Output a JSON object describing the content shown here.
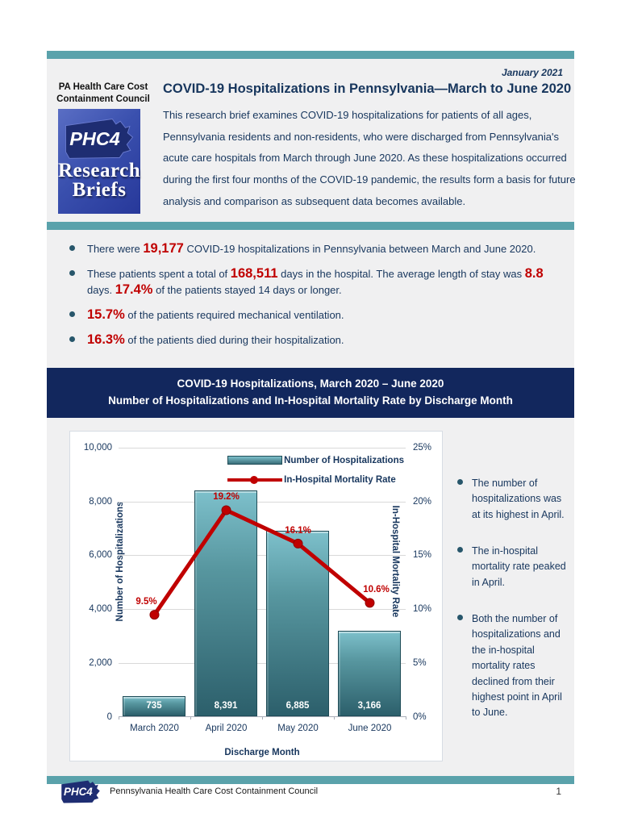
{
  "colors": {
    "teal_accent": "#5aa2ab",
    "navy_text": "#17365d",
    "navy_bar": "#12275d",
    "red_emphasis": "#c00000",
    "bar_top": "#7dc0cb",
    "bar_bottom": "#2c5f6b",
    "content_bg": "#f0f0f1"
  },
  "header": {
    "date": "January 2021",
    "org_name_line1": "PA Health Care Cost",
    "org_name_line2": "Containment Council",
    "logo_acronym": "PHC4",
    "logo_series_line1": "Research",
    "logo_series_line2": "Briefs",
    "title": "COVID-19 Hospitalizations in Pennsylvania—March to June 2020",
    "intro": "This research brief examines COVID-19 hospitalizations for patients of all ages, Pennsylvania residents and non-residents, who were discharged from Pennsylvania's acute care hospitals from March through June 2020. As these hospitalizations occurred during the first four months of the COVID-19 pandemic, the results form a basis for future analysis and comparison as subsequent data becomes available."
  },
  "key_findings": [
    {
      "segments": [
        {
          "t": "There were ",
          "em": false
        },
        {
          "t": "19,177",
          "em": true
        },
        {
          "t": " COVID-19 hospitalizations in Pennsylvania between March and June 2020.",
          "em": false
        }
      ]
    },
    {
      "segments": [
        {
          "t": "These patients spent a total of ",
          "em": false
        },
        {
          "t": "168,511",
          "em": true
        },
        {
          "t": " days in the hospital. The average length of stay was ",
          "em": false
        },
        {
          "t": "8.8",
          "em": true
        },
        {
          "t": " days. ",
          "em": false
        },
        {
          "t": "17.4%",
          "em": true
        },
        {
          "t": " of the patients stayed 14 days or longer.",
          "em": false
        }
      ]
    },
    {
      "segments": [
        {
          "t": "15.7%",
          "em": true
        },
        {
          "t": " of the patients required mechanical ventilation.",
          "em": false
        }
      ]
    },
    {
      "segments": [
        {
          "t": "16.3%",
          "em": true
        },
        {
          "t": " of the patients died during their hospitalization.",
          "em": false
        }
      ]
    }
  ],
  "chart_header": {
    "line1": "COVID-19 Hospitalizations, March 2020 – June 2020",
    "line2": "Number of Hospitalizations and In-Hospital Mortality Rate by Discharge Month"
  },
  "chart_data": {
    "type": "bar",
    "categories": [
      "March 2020",
      "April 2020",
      "May 2020",
      "June 2020"
    ],
    "series": [
      {
        "name": "Number of Hospitalizations",
        "type": "bar",
        "axis": "left",
        "values": [
          735,
          8391,
          6885,
          3166
        ],
        "value_labels": [
          "735",
          "8,391",
          "6,885",
          "3,166"
        ]
      },
      {
        "name": "In-Hospital Mortality Rate",
        "type": "line",
        "axis": "right",
        "values": [
          9.5,
          19.2,
          16.1,
          10.6
        ],
        "value_labels": [
          "9.5%",
          "19.2%",
          "16.1%",
          "10.6%"
        ],
        "color": "#c00000"
      }
    ],
    "left_axis": {
      "label": "Number of Hospitalizations",
      "min": 0,
      "max": 10000,
      "ticks": [
        "0",
        "2,000",
        "4,000",
        "6,000",
        "8,000",
        "10,000"
      ]
    },
    "right_axis": {
      "label": "In-Hospital Mortality Rate",
      "min": 0,
      "max": 25,
      "ticks": [
        "0%",
        "5%",
        "10%",
        "15%",
        "20%",
        "25%"
      ]
    },
    "xlabel": "Discharge Month",
    "grid": true,
    "legend_position": "top-right",
    "legend": [
      "Number of Hospitalizations",
      "In-Hospital Mortality Rate"
    ]
  },
  "side_notes": [
    "The number of hospitalizations was at its highest in April.",
    "The in-hospital mortality rate peaked in April.",
    "Both the number of hospitalizations and the in-hospital mortality rates declined from their highest point in April to June."
  ],
  "footer": {
    "logo_acronym": "PHC4",
    "org": "Pennsylvania Health Care Cost Containment Council",
    "page": "1"
  }
}
